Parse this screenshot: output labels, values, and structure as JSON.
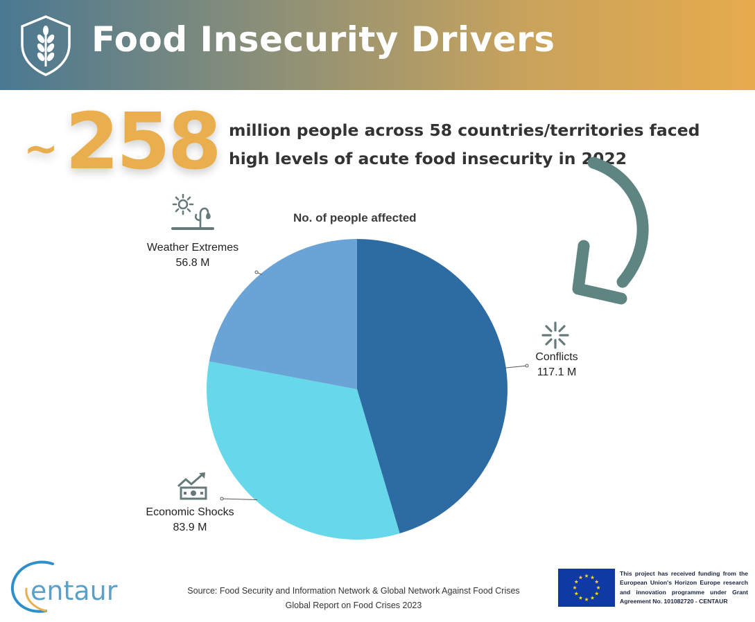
{
  "header": {
    "title": "Food Insecurity Drivers",
    "emblem_icon": "shield-wheat-icon"
  },
  "highlight": {
    "prefix": "~",
    "value": "258",
    "text": "million people across 58 countries/territories faced high levels of acute food insecurity in 2022"
  },
  "chart_data": {
    "type": "pie",
    "title": "No. of people affected",
    "unit": "M",
    "categories": [
      "Conflicts",
      "Economic Shocks",
      "Weather Extremes"
    ],
    "values": [
      117.1,
      83.9,
      56.8
    ],
    "value_labels": [
      "117.1 M",
      "83.9 M",
      "56.8 M"
    ],
    "icons": [
      "explosion-icon",
      "market-cash-icon",
      "sun-drought-icon"
    ],
    "colors": [
      "#2c6ca3",
      "#67d8ea",
      "#6aa3d5"
    ],
    "start_angle_deg": 0,
    "direction": "clockwise"
  },
  "footer": {
    "logo_text": "entaur",
    "source_line1": "Source: Food Security and Information Network & Global Network Against Food Crises",
    "source_line2": "Global Report on Food Crises 2023",
    "funding_text": "This project has received funding from the European Union's Horizon Europe research and innovation programme under Grant Agreement No. 101082720 - CENTAUR"
  },
  "colors": {
    "accent_orange": "#e9ae4d",
    "arrow_teal": "#5e8582",
    "icon_gray": "#657a79",
    "eu_blue": "#0f3aa4",
    "eu_star": "#ffd617"
  }
}
